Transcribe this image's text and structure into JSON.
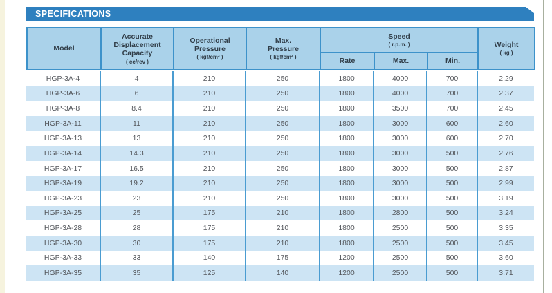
{
  "title_bar": {
    "label": "SPECIFICATIONS"
  },
  "colors": {
    "title_bar_blue": "#2e80bf",
    "header_fill": "#aad2ea",
    "header_border": "#3d92ca",
    "column_separator": "#4a9cd1",
    "row_stripe": "#cde4f4"
  },
  "table": {
    "headers": {
      "model": "Model",
      "capacity": "Accurate\nDisplacement\nCapacity",
      "capacity_unit": "( cc/rev )",
      "operational_pressure": "Operational\nPressure",
      "operational_pressure_unit": "( kgf/cm² )",
      "max_pressure": "Max.\nPressure",
      "max_pressure_unit": "( kgf/cm² )",
      "speed": "Speed",
      "speed_unit": "( r.p.m. )",
      "speed_rate": "Rate",
      "speed_max": "Max.",
      "speed_min": "Min.",
      "weight": "Weight",
      "weight_unit": "( kg )"
    },
    "rows": [
      {
        "model": "HGP-3A-4",
        "capacity": "4",
        "operational_pressure": "210",
        "max_pressure": "250",
        "rate": "1800",
        "max": "4000",
        "min": "700",
        "weight": "2.29"
      },
      {
        "model": "HGP-3A-6",
        "capacity": "6",
        "operational_pressure": "210",
        "max_pressure": "250",
        "rate": "1800",
        "max": "4000",
        "min": "700",
        "weight": "2.37"
      },
      {
        "model": "HGP-3A-8",
        "capacity": "8.4",
        "operational_pressure": "210",
        "max_pressure": "250",
        "rate": "1800",
        "max": "3500",
        "min": "700",
        "weight": "2.45"
      },
      {
        "model": "HGP-3A-11",
        "capacity": "11",
        "operational_pressure": "210",
        "max_pressure": "250",
        "rate": "1800",
        "max": "3000",
        "min": "600",
        "weight": "2.60"
      },
      {
        "model": "HGP-3A-13",
        "capacity": "13",
        "operational_pressure": "210",
        "max_pressure": "250",
        "rate": "1800",
        "max": "3000",
        "min": "600",
        "weight": "2.70"
      },
      {
        "model": "HGP-3A-14",
        "capacity": "14.3",
        "operational_pressure": "210",
        "max_pressure": "250",
        "rate": "1800",
        "max": "3000",
        "min": "500",
        "weight": "2.76"
      },
      {
        "model": "HGP-3A-17",
        "capacity": "16.5",
        "operational_pressure": "210",
        "max_pressure": "250",
        "rate": "1800",
        "max": "3000",
        "min": "500",
        "weight": "2.87"
      },
      {
        "model": "HGP-3A-19",
        "capacity": "19.2",
        "operational_pressure": "210",
        "max_pressure": "250",
        "rate": "1800",
        "max": "3000",
        "min": "500",
        "weight": "2.99"
      },
      {
        "model": "HGP-3A-23",
        "capacity": "23",
        "operational_pressure": "210",
        "max_pressure": "250",
        "rate": "1800",
        "max": "3000",
        "min": "500",
        "weight": "3.19"
      },
      {
        "model": "HGP-3A-25",
        "capacity": "25",
        "operational_pressure": "175",
        "max_pressure": "210",
        "rate": "1800",
        "max": "2800",
        "min": "500",
        "weight": "3.24"
      },
      {
        "model": "HGP-3A-28",
        "capacity": "28",
        "operational_pressure": "175",
        "max_pressure": "210",
        "rate": "1800",
        "max": "2500",
        "min": "500",
        "weight": "3.35"
      },
      {
        "model": "HGP-3A-30",
        "capacity": "30",
        "operational_pressure": "175",
        "max_pressure": "210",
        "rate": "1800",
        "max": "2500",
        "min": "500",
        "weight": "3.45"
      },
      {
        "model": "HGP-3A-33",
        "capacity": "33",
        "operational_pressure": "140",
        "max_pressure": "175",
        "rate": "1200",
        "max": "2500",
        "min": "500",
        "weight": "3.60"
      },
      {
        "model": "HGP-3A-35",
        "capacity": "35",
        "operational_pressure": "125",
        "max_pressure": "140",
        "rate": "1200",
        "max": "2500",
        "min": "500",
        "weight": "3.71"
      }
    ]
  }
}
